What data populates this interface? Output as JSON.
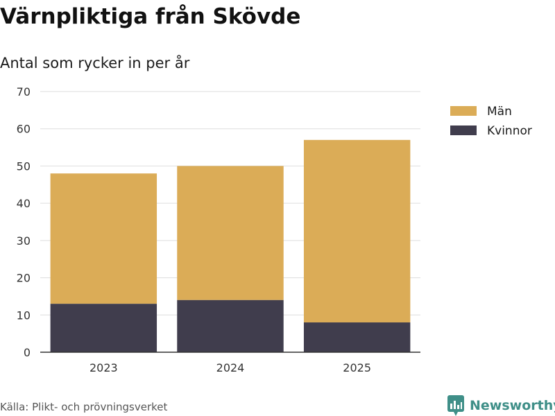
{
  "title": "Värnpliktiga från Skövde",
  "subtitle": "Antal som rycker in per år",
  "source": "Källa: Plikt- och prövningsverket",
  "brand": "Newsworthy",
  "colors": {
    "man": "#dbac57",
    "kvinnor": "#403d4d",
    "grid": "#dddddd",
    "axis": "#333333",
    "brand": "#3f8f88"
  },
  "chart_data": {
    "type": "bar",
    "stacked": true,
    "categories": [
      "2023",
      "2024",
      "2025"
    ],
    "series": [
      {
        "name": "Kvinnor",
        "values": [
          13,
          14,
          8
        ]
      },
      {
        "name": "Män",
        "values": [
          35,
          36,
          49
        ]
      }
    ],
    "legend": [
      "Män",
      "Kvinnor"
    ],
    "ylim": [
      0,
      70
    ],
    "yticks": [
      "0",
      "10",
      "20",
      "30",
      "40",
      "50",
      "60",
      "70"
    ],
    "grid": true,
    "legend_position": "right"
  }
}
